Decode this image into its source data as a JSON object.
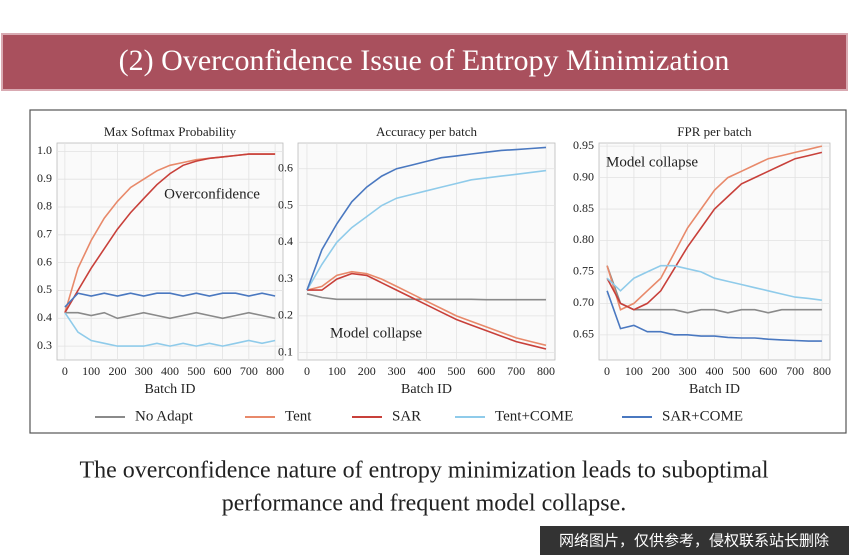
{
  "header": {
    "title": "(2) Overconfidence Issue of Entropy Minimization"
  },
  "chart_data": [
    {
      "type": "line",
      "title": "Max Softmax Probability",
      "xlabel": "Batch ID",
      "annotation": "Overconfidence",
      "x": [
        0,
        50,
        100,
        150,
        200,
        250,
        300,
        350,
        400,
        450,
        500,
        550,
        600,
        650,
        700,
        750,
        800
      ],
      "xlim": [
        -30,
        830
      ],
      "xticks": [
        0,
        100,
        200,
        300,
        400,
        500,
        600,
        700,
        800
      ],
      "ylim": [
        0.25,
        1.03
      ],
      "yticks": [
        0.3,
        0.4,
        0.5,
        0.6,
        0.7,
        0.8,
        0.9,
        {
          "value": 1.0,
          "label": "1.0"
        }
      ],
      "grid": true,
      "series": [
        {
          "name": "No Adapt",
          "color": "#8a8a8a",
          "values": [
            0.42,
            0.42,
            0.41,
            0.42,
            0.4,
            0.41,
            0.42,
            0.41,
            0.4,
            0.41,
            0.42,
            0.41,
            0.4,
            0.41,
            0.42,
            0.41,
            0.4
          ]
        },
        {
          "name": "Tent",
          "color": "#e8896a",
          "values": [
            0.42,
            0.58,
            0.68,
            0.76,
            0.82,
            0.87,
            0.9,
            0.93,
            0.95,
            0.96,
            0.97,
            0.975,
            0.98,
            0.985,
            0.99,
            0.99,
            0.99
          ]
        },
        {
          "name": "SAR",
          "color": "#c8403a",
          "values": [
            0.42,
            0.5,
            0.58,
            0.65,
            0.72,
            0.78,
            0.83,
            0.88,
            0.92,
            0.95,
            0.965,
            0.975,
            0.98,
            0.985,
            0.99,
            0.99,
            0.99
          ]
        },
        {
          "name": "Tent+COME",
          "color": "#8fcbea",
          "values": [
            0.42,
            0.35,
            0.32,
            0.31,
            0.3,
            0.3,
            0.3,
            0.31,
            0.3,
            0.31,
            0.3,
            0.31,
            0.3,
            0.31,
            0.32,
            0.31,
            0.32
          ]
        },
        {
          "name": "SAR+COME",
          "color": "#4a78c0",
          "values": [
            0.44,
            0.49,
            0.48,
            0.49,
            0.48,
            0.49,
            0.48,
            0.49,
            0.49,
            0.48,
            0.49,
            0.48,
            0.49,
            0.49,
            0.48,
            0.49,
            0.48
          ]
        }
      ]
    },
    {
      "type": "line",
      "title": "Accuracy per batch",
      "xlabel": "Batch ID",
      "annotation": "Model collapse",
      "x": [
        0,
        50,
        100,
        150,
        200,
        250,
        300,
        350,
        400,
        450,
        500,
        550,
        600,
        650,
        700,
        750,
        800
      ],
      "xlim": [
        -30,
        830
      ],
      "xticks": [
        0,
        100,
        200,
        300,
        400,
        500,
        600,
        700,
        800
      ],
      "ylim": [
        0.08,
        0.67
      ],
      "yticks": [
        0.1,
        0.2,
        0.3,
        0.4,
        0.5,
        0.6
      ],
      "grid": true,
      "series": [
        {
          "color": "#8a8a8a",
          "values": [
            0.26,
            0.25,
            0.245,
            0.245,
            0.245,
            0.245,
            0.245,
            0.245,
            0.245,
            0.245,
            0.245,
            0.245,
            0.244,
            0.244,
            0.244,
            0.244,
            0.244
          ]
        },
        {
          "color": "#e8896a",
          "values": [
            0.27,
            0.28,
            0.31,
            0.32,
            0.315,
            0.3,
            0.28,
            0.26,
            0.24,
            0.22,
            0.2,
            0.185,
            0.17,
            0.155,
            0.14,
            0.13,
            0.12
          ]
        },
        {
          "color": "#c8403a",
          "values": [
            0.27,
            0.27,
            0.3,
            0.315,
            0.31,
            0.29,
            0.27,
            0.25,
            0.23,
            0.21,
            0.19,
            0.175,
            0.16,
            0.145,
            0.13,
            0.12,
            0.11
          ]
        },
        {
          "color": "#8fcbea",
          "values": [
            0.27,
            0.34,
            0.4,
            0.44,
            0.47,
            0.5,
            0.52,
            0.53,
            0.54,
            0.55,
            0.56,
            0.57,
            0.575,
            0.58,
            0.585,
            0.59,
            0.595
          ]
        },
        {
          "color": "#4a78c0",
          "values": [
            0.27,
            0.38,
            0.45,
            0.51,
            0.55,
            0.58,
            0.6,
            0.61,
            0.62,
            0.63,
            0.635,
            0.64,
            0.645,
            0.65,
            0.652,
            0.655,
            0.658
          ]
        }
      ]
    },
    {
      "type": "line",
      "title": "FPR per batch",
      "xlabel": "Batch ID",
      "annotation": "Model collapse",
      "x": [
        0,
        50,
        100,
        150,
        200,
        250,
        300,
        350,
        400,
        450,
        500,
        550,
        600,
        650,
        700,
        750,
        800
      ],
      "xlim": [
        -30,
        830
      ],
      "xticks": [
        0,
        100,
        200,
        300,
        400,
        500,
        600,
        700,
        800
      ],
      "ylim": [
        0.61,
        0.955
      ],
      "yticks": [
        0.65,
        {
          "value": 0.7,
          "label": "0.70"
        },
        0.75,
        {
          "value": 0.8,
          "label": "0.80"
        },
        0.85,
        {
          "value": 0.9,
          "label": "0.90"
        },
        0.95
      ],
      "grid": true,
      "series": [
        {
          "color": "#8a8a8a",
          "values": [
            0.76,
            0.7,
            0.69,
            0.69,
            0.69,
            0.69,
            0.685,
            0.69,
            0.69,
            0.685,
            0.69,
            0.69,
            0.685,
            0.69,
            0.69,
            0.69,
            0.69
          ]
        },
        {
          "color": "#e8896a",
          "values": [
            0.76,
            0.69,
            0.7,
            0.72,
            0.74,
            0.78,
            0.82,
            0.85,
            0.88,
            0.9,
            0.91,
            0.92,
            0.93,
            0.935,
            0.94,
            0.945,
            0.95
          ]
        },
        {
          "color": "#c8403a",
          "values": [
            0.74,
            0.7,
            0.69,
            0.7,
            0.72,
            0.755,
            0.79,
            0.82,
            0.85,
            0.87,
            0.89,
            0.9,
            0.91,
            0.92,
            0.93,
            0.935,
            0.94
          ]
        },
        {
          "color": "#8fcbea",
          "values": [
            0.74,
            0.72,
            0.74,
            0.75,
            0.76,
            0.76,
            0.755,
            0.75,
            0.74,
            0.735,
            0.73,
            0.725,
            0.72,
            0.715,
            0.71,
            0.708,
            0.705
          ]
        },
        {
          "color": "#4a78c0",
          "values": [
            0.72,
            0.66,
            0.665,
            0.655,
            0.655,
            0.65,
            0.65,
            0.648,
            0.648,
            0.646,
            0.645,
            0.645,
            0.643,
            0.642,
            0.641,
            0.64,
            0.64
          ]
        }
      ]
    }
  ],
  "caption": [
    "The overconfidence nature of entropy minimization leads to suboptimal",
    "performance and frequent model collapse."
  ],
  "watermark": "网络图片，仅供参考，侵权联系站长删除"
}
